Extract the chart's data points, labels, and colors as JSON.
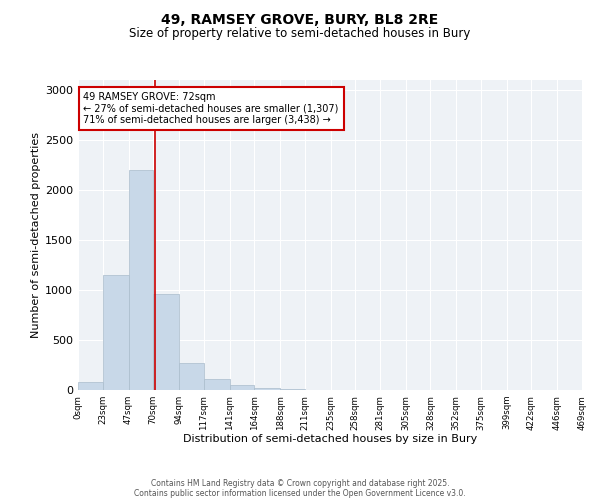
{
  "title_line1": "49, RAMSEY GROVE, BURY, BL8 2RE",
  "title_line2": "Size of property relative to semi-detached houses in Bury",
  "xlabel": "Distribution of semi-detached houses by size in Bury",
  "ylabel": "Number of semi-detached properties",
  "bar_edges": [
    0,
    23,
    47,
    70,
    94,
    117,
    141,
    164,
    188,
    211,
    235,
    258,
    281,
    305,
    328,
    352,
    375,
    399,
    422,
    446,
    469
  ],
  "bar_heights": [
    80,
    1150,
    2200,
    960,
    270,
    110,
    55,
    25,
    10,
    5,
    3,
    2,
    1,
    1,
    0,
    0,
    0,
    0,
    0,
    0
  ],
  "bar_color": "#c8d8e8",
  "bar_edgecolor": "#aabccc",
  "property_size": 72,
  "marker_color": "#cc0000",
  "annotation_text": "49 RAMSEY GROVE: 72sqm\n← 27% of semi-detached houses are smaller (1,307)\n71% of semi-detached houses are larger (3,438) →",
  "annotation_box_color": "#ffffff",
  "annotation_box_edgecolor": "#cc0000",
  "ylim": [
    0,
    3100
  ],
  "yticks": [
    0,
    500,
    1000,
    1500,
    2000,
    2500,
    3000
  ],
  "tick_labels": [
    "0sqm",
    "23sqm",
    "47sqm",
    "70sqm",
    "94sqm",
    "117sqm",
    "141sqm",
    "164sqm",
    "188sqm",
    "211sqm",
    "235sqm",
    "258sqm",
    "281sqm",
    "305sqm",
    "328sqm",
    "352sqm",
    "375sqm",
    "399sqm",
    "422sqm",
    "446sqm",
    "469sqm"
  ],
  "background_color": "#eef2f6",
  "footer_line1": "Contains HM Land Registry data © Crown copyright and database right 2025.",
  "footer_line2": "Contains public sector information licensed under the Open Government Licence v3.0."
}
